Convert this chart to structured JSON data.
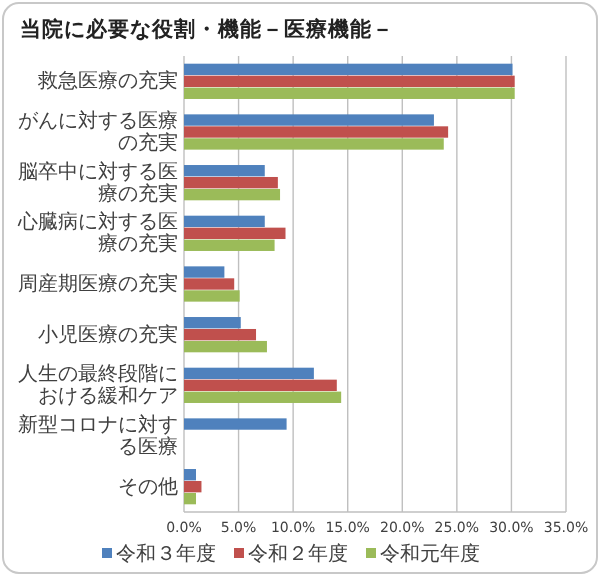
{
  "chart_data": {
    "type": "bar",
    "orientation": "horizontal",
    "title": "当院に必要な役割・機能－医療機能－",
    "categories": [
      "救急医療の充実",
      "がんに対する医療の充実",
      "脳卒中に対する医療の充実",
      "心臓病に対する医療の充実",
      "周産期医療の充実",
      "小児医療の充実",
      "人生の最終段階における緩和ケア",
      "新型コロナに対する医療",
      "その他"
    ],
    "series": [
      {
        "name": "令和３年度",
        "color": "#4f81bd",
        "values": [
          30.1,
          22.9,
          7.4,
          7.4,
          3.7,
          5.2,
          11.9,
          9.4,
          1.1
        ]
      },
      {
        "name": "令和２年度",
        "color": "#c0504d",
        "values": [
          30.3,
          24.2,
          8.6,
          9.3,
          4.6,
          6.6,
          14.0,
          null,
          1.6
        ]
      },
      {
        "name": "令和元年度",
        "color": "#9bbb59",
        "values": [
          30.3,
          23.8,
          8.8,
          8.3,
          5.1,
          7.6,
          14.4,
          null,
          1.1
        ]
      }
    ],
    "xlim": [
      0,
      35
    ],
    "xticks": [
      {
        "value": 0,
        "label": "0.0%"
      },
      {
        "value": 5,
        "label": "5.0%"
      },
      {
        "value": 10,
        "label": "10.0%"
      },
      {
        "value": 15,
        "label": "15.0%"
      },
      {
        "value": 20,
        "label": "20.0%"
      },
      {
        "value": 25,
        "label": "25.0%"
      },
      {
        "value": 30,
        "label": "30.0%"
      },
      {
        "value": 35,
        "label": "35.0%"
      }
    ],
    "grid": "x",
    "legend": "bottom"
  }
}
